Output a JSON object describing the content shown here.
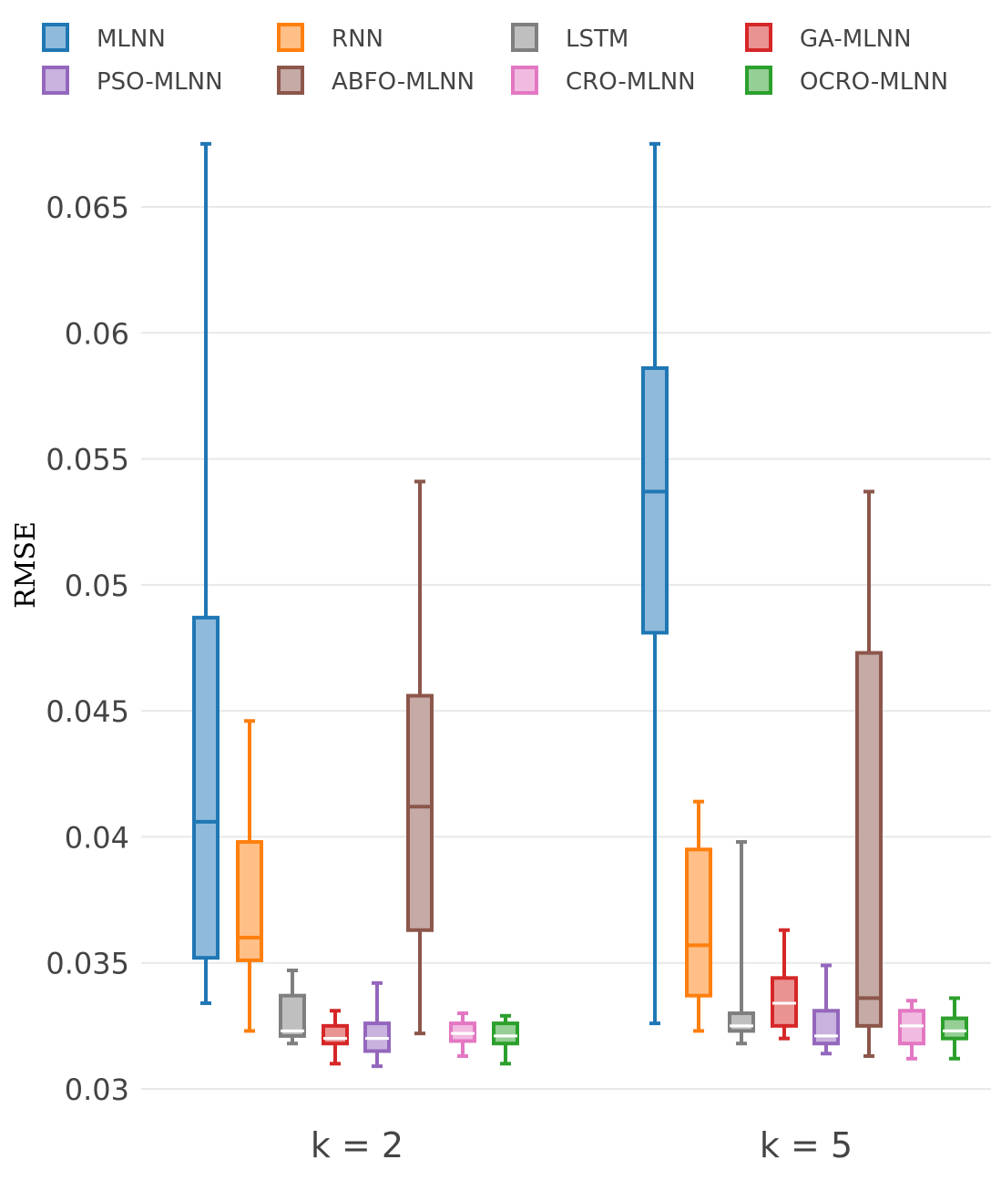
{
  "chart_data": {
    "type": "box",
    "ylabel": "RMSE",
    "ylim": [
      0.0294,
      0.0676
    ],
    "yticks": [
      "0.03",
      "0.035",
      "0.04",
      "0.045",
      "0.05",
      "0.055",
      "0.06",
      "0.065"
    ],
    "grid": true,
    "legend_position": "top",
    "categories": [
      "k = 2",
      "k = 5"
    ],
    "series": [
      {
        "name": "MLNN",
        "color": "#1f77b4",
        "fill": "#8fbadc",
        "boxes": [
          {
            "min": 0.0334,
            "q1": 0.0352,
            "median": 0.0406,
            "q3": 0.0487,
            "max": 0.0675
          },
          {
            "min": 0.0326,
            "q1": 0.0481,
            "median": 0.0537,
            "q3": 0.0586,
            "max": 0.0675
          }
        ]
      },
      {
        "name": "RNN",
        "color": "#ff7f0e",
        "fill": "#ffbf87",
        "boxes": [
          {
            "min": 0.0323,
            "q1": 0.0351,
            "median": 0.036,
            "q3": 0.0398,
            "max": 0.0446
          },
          {
            "min": 0.0323,
            "q1": 0.0337,
            "median": 0.0357,
            "q3": 0.0395,
            "max": 0.0414
          }
        ]
      },
      {
        "name": "LSTM",
        "color": "#7f7f7f",
        "fill": "#bfbfbf",
        "boxes": [
          {
            "min": 0.0318,
            "q1": 0.0321,
            "median": 0.0323,
            "q3": 0.0337,
            "max": 0.0347
          },
          {
            "min": 0.0318,
            "q1": 0.0323,
            "median": 0.0325,
            "q3": 0.033,
            "max": 0.0398
          }
        ]
      },
      {
        "name": "GA-MLNN",
        "color": "#d62728",
        "fill": "#ea9393",
        "boxes": [
          {
            "min": 0.031,
            "q1": 0.0318,
            "median": 0.032,
            "q3": 0.0325,
            "max": 0.0331
          },
          {
            "min": 0.032,
            "q1": 0.0325,
            "median": 0.0334,
            "q3": 0.0344,
            "max": 0.0363
          }
        ]
      },
      {
        "name": "PSO-MLNN",
        "color": "#9467bd",
        "fill": "#c9b3de",
        "boxes": [
          {
            "min": 0.0309,
            "q1": 0.0315,
            "median": 0.032,
            "q3": 0.0326,
            "max": 0.0342
          },
          {
            "min": 0.0314,
            "q1": 0.0318,
            "median": 0.0321,
            "q3": 0.0331,
            "max": 0.0349
          }
        ]
      },
      {
        "name": "ABFO-MLNN",
        "color": "#8c564b",
        "fill": "#c5aaa5",
        "boxes": [
          {
            "min": 0.0322,
            "q1": 0.0363,
            "median": 0.0412,
            "q3": 0.0456,
            "max": 0.0541
          },
          {
            "min": 0.0313,
            "q1": 0.0325,
            "median": 0.0336,
            "q3": 0.0473,
            "max": 0.0537
          }
        ]
      },
      {
        "name": "CRO-MLNN",
        "color": "#e377c2",
        "fill": "#f1bbe1",
        "boxes": [
          {
            "min": 0.0313,
            "q1": 0.0319,
            "median": 0.0322,
            "q3": 0.0326,
            "max": 0.033
          },
          {
            "min": 0.0312,
            "q1": 0.0318,
            "median": 0.0325,
            "q3": 0.0331,
            "max": 0.0335
          }
        ]
      },
      {
        "name": "OCRO-MLNN",
        "color": "#2ca02c",
        "fill": "#95cf95",
        "boxes": [
          {
            "min": 0.031,
            "q1": 0.0318,
            "median": 0.0321,
            "q3": 0.0326,
            "max": 0.0329
          },
          {
            "min": 0.0312,
            "q1": 0.032,
            "median": 0.0323,
            "q3": 0.0328,
            "max": 0.0336
          }
        ]
      }
    ]
  }
}
